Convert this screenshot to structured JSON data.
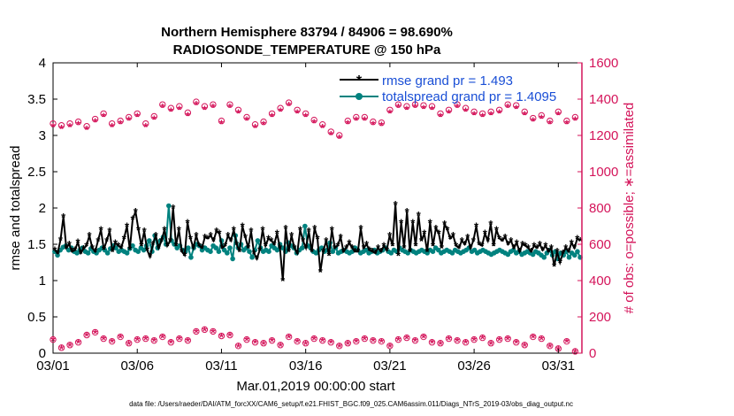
{
  "chart_data": {
    "type": "line",
    "title_line1": "Northern Hemisphere 83794 / 84906 = 98.690%",
    "title_line2": "RADIOSONDE_TEMPERATURE @ 150 hPa",
    "xlabel": "Mar.01,2019 00:00:00 start",
    "ylabel_left": "rmse and totalspread",
    "ylabel_right": "# of obs: o=possible; ∗=assimilated",
    "footer": "data file: /Users/raeder/DAI/ATM_forcXX/CAM6_setup/f.e21.FHIST_BGC.f09_025.CAM6assim.011/Diags_NTrS_2019-03/obs_diag_output.nc",
    "xlim": [
      0,
      31.4
    ],
    "ylim_left": [
      0,
      4
    ],
    "ylim_right": [
      0,
      1600
    ],
    "x_ticks": [
      {
        "label": "03/01",
        "value": 0
      },
      {
        "label": "03/06",
        "value": 5
      },
      {
        "label": "03/11",
        "value": 10
      },
      {
        "label": "03/16",
        "value": 15
      },
      {
        "label": "03/21",
        "value": 20
      },
      {
        "label": "03/26",
        "value": 25
      },
      {
        "label": "03/31",
        "value": 30
      }
    ],
    "y_ticks_left": [
      "0",
      "0.5",
      "1",
      "1.5",
      "2",
      "2.5",
      "3",
      "3.5",
      "4"
    ],
    "y_ticks_right": [
      "0",
      "200",
      "400",
      "600",
      "800",
      "1000",
      "1200",
      "1400",
      "1600"
    ],
    "legend": {
      "placement": "top-right",
      "rmse": "rmse grand pr = 1.493",
      "spread": "totalspread grand pr = 1.4095"
    },
    "colors": {
      "rmse": "#000000",
      "spread": "#00827f",
      "obs": "#d4145a",
      "legend_text": "#1a4fd6",
      "axis": "#000000"
    },
    "rmse": [
      1.42,
      1.38,
      1.56,
      1.88,
      1.45,
      1.5,
      1.4,
      1.42,
      1.53,
      1.38,
      1.44,
      1.48,
      1.62,
      1.45,
      1.4,
      1.55,
      1.7,
      1.43,
      1.55,
      1.68,
      1.4,
      1.52,
      1.48,
      1.45,
      1.58,
      1.75,
      1.43,
      1.85,
      1.95,
      1.7,
      1.48,
      1.68,
      1.42,
      1.33,
      1.5,
      1.62,
      1.45,
      1.55,
      1.7,
      1.48,
      1.55,
      2.0,
      1.48,
      1.7,
      1.4,
      1.35,
      1.8,
      1.58,
      1.45,
      1.62,
      1.48,
      1.45,
      1.6,
      1.58,
      1.62,
      1.55,
      1.68,
      1.65,
      1.45,
      1.48,
      1.62,
      1.55,
      1.7,
      1.5,
      1.4,
      1.75,
      1.6,
      1.45,
      1.68,
      1.38,
      1.3,
      1.42,
      1.7,
      1.48,
      1.58,
      1.55,
      1.5,
      1.65,
      1.45,
      1.0,
      1.72,
      1.4,
      1.62,
      1.45,
      1.38,
      1.7,
      1.55,
      1.45,
      1.68,
      1.4,
      1.72,
      1.58,
      1.12,
      1.4,
      1.55,
      1.35,
      1.7,
      1.45,
      1.48,
      1.6,
      1.4,
      1.45,
      1.52,
      1.45,
      1.4,
      1.4,
      1.72,
      1.45,
      1.5,
      1.42,
      1.4,
      1.38,
      1.45,
      1.4,
      1.48,
      1.42,
      1.62,
      1.48,
      2.05,
      1.35,
      1.8,
      1.45,
      1.95,
      1.4,
      1.8,
      1.48,
      1.9,
      1.55,
      1.65,
      1.4,
      1.8,
      1.48,
      1.72,
      1.65,
      1.45,
      1.78,
      1.7,
      1.58,
      1.62,
      1.48,
      1.45,
      1.55,
      1.5,
      1.6,
      1.45,
      1.55,
      1.75,
      1.5,
      1.48,
      1.65,
      1.55,
      1.78,
      1.48,
      1.7,
      1.58,
      1.55,
      1.6,
      1.5,
      1.55,
      1.45,
      1.52,
      1.4,
      1.5,
      1.48,
      1.45,
      1.4,
      1.48,
      1.45,
      1.5,
      1.42,
      1.48,
      1.4,
      1.45,
      1.2,
      1.4,
      1.25,
      1.38,
      1.45,
      1.4,
      1.52,
      1.45,
      1.58,
      1.55
    ],
    "totalspread": [
      1.4,
      1.35,
      1.42,
      1.46,
      1.48,
      1.42,
      1.45,
      1.4,
      1.38,
      1.42,
      1.45,
      1.4,
      1.38,
      1.44,
      1.4,
      1.38,
      1.42,
      1.45,
      1.42,
      1.38,
      1.44,
      1.48,
      1.45,
      1.4,
      1.42,
      1.4,
      1.38,
      1.44,
      1.48,
      1.42,
      1.4,
      1.45,
      1.42,
      1.48,
      1.55,
      1.4,
      1.62,
      1.45,
      1.55,
      1.6,
      1.5,
      2.03,
      1.55,
      1.5,
      1.45,
      1.48,
      1.42,
      1.4,
      1.45,
      1.32,
      1.45,
      1.5,
      1.48,
      1.42,
      1.45,
      1.42,
      1.4,
      1.48,
      1.45,
      1.4,
      1.55,
      1.42,
      1.38,
      1.45,
      1.3,
      1.62,
      1.45,
      1.5,
      1.42,
      1.45,
      1.4,
      1.32,
      1.42,
      1.55,
      1.45,
      1.4,
      1.42,
      1.4,
      1.48,
      1.45,
      1.42,
      1.5,
      1.45,
      1.4,
      1.52,
      1.48,
      1.45,
      1.38,
      1.42,
      1.45,
      1.75,
      1.48,
      1.45,
      1.4,
      1.38,
      1.42,
      1.45,
      1.4,
      1.42,
      1.52,
      1.4,
      1.45,
      1.38,
      1.4,
      1.42,
      1.4,
      1.38,
      1.4,
      1.45,
      1.42,
      1.38,
      1.4,
      1.42,
      1.38,
      1.4,
      1.42,
      1.38,
      1.4,
      1.42,
      1.45,
      1.4,
      1.38,
      1.42,
      1.4,
      1.45,
      1.42,
      1.4,
      1.38,
      1.42,
      1.4,
      1.38,
      1.4,
      1.42,
      1.4,
      1.38,
      1.42,
      1.4,
      1.45,
      1.42,
      1.38,
      1.4,
      1.42,
      1.4,
      1.38,
      1.42,
      1.4,
      1.38,
      1.4,
      1.42,
      1.45,
      1.4,
      1.42,
      1.38,
      1.4,
      1.42,
      1.4,
      1.38,
      1.36,
      1.38,
      1.4,
      1.42,
      1.4,
      1.38,
      1.36,
      1.4,
      1.42,
      1.38,
      1.4,
      1.36,
      1.38,
      1.4,
      1.38,
      1.36,
      1.4,
      1.38,
      1.35,
      1.32,
      1.38,
      1.42,
      1.35,
      1.4,
      1.3,
      1.38,
      1.35,
      1.4,
      1.32,
      1.38,
      1.35,
      1.4,
      1.32
    ],
    "obs_days": [
      0.0,
      0.5,
      1.0,
      1.5,
      2.0,
      2.5,
      3.0,
      3.5,
      4.0,
      4.5,
      5.0,
      5.5,
      6.0,
      6.5,
      7.0,
      7.5,
      8.0,
      8.5,
      9.0,
      9.5,
      10.0,
      10.5,
      11.0,
      11.5,
      12.0,
      12.5,
      13.0,
      13.5,
      14.0,
      14.5,
      15.0,
      15.5,
      16.0,
      16.5,
      17.0,
      17.5,
      18.0,
      18.5,
      19.0,
      19.5,
      20.0,
      20.5,
      21.0,
      21.5,
      22.0,
      22.5,
      23.0,
      23.5,
      24.0,
      24.5,
      25.0,
      25.5,
      26.0,
      26.5,
      27.0,
      27.5,
      28.0,
      28.5,
      29.0,
      29.5,
      30.0,
      30.5,
      31.0
    ],
    "obs_possible_high": [
      1265,
      1255,
      1265,
      1275,
      1250,
      1290,
      1320,
      1265,
      1280,
      1300,
      1320,
      1265,
      1305,
      1370,
      1350,
      1360,
      1325,
      1385,
      1360,
      1370,
      1280,
      1370,
      1340,
      1300,
      1260,
      1275,
      1320,
      1350,
      1380,
      1340,
      1320,
      1285,
      1260,
      1220,
      1200,
      1280,
      1300,
      1300,
      1275,
      1270,
      1340,
      1370,
      1360,
      1370,
      1365,
      1360,
      1320,
      1340,
      1370,
      1350,
      1330,
      1320,
      1330,
      1340,
      1370,
      1365,
      1330,
      1295,
      1310,
      1280,
      1330,
      1280,
      1300
    ],
    "obs_assim_high": [
      1250,
      1240,
      1250,
      1260,
      1235,
      1275,
      1305,
      1250,
      1265,
      1285,
      1305,
      1250,
      1290,
      1355,
      1335,
      1345,
      1310,
      1370,
      1345,
      1355,
      1265,
      1355,
      1325,
      1285,
      1245,
      1260,
      1305,
      1335,
      1365,
      1325,
      1305,
      1270,
      1245,
      1205,
      1185,
      1265,
      1285,
      1285,
      1260,
      1255,
      1325,
      1355,
      1345,
      1355,
      1350,
      1345,
      1305,
      1325,
      1355,
      1335,
      1315,
      1305,
      1315,
      1325,
      1355,
      1350,
      1315,
      1280,
      1295,
      1265,
      1315,
      1265,
      1285
    ],
    "obs_possible_low": [
      75,
      30,
      45,
      60,
      100,
      115,
      80,
      65,
      90,
      55,
      75,
      80,
      70,
      90,
      60,
      80,
      70,
      120,
      130,
      120,
      95,
      100,
      40,
      75,
      60,
      55,
      70,
      45,
      90,
      65,
      55,
      80,
      70,
      60,
      40,
      55,
      65,
      80,
      70,
      65,
      40,
      75,
      85,
      70,
      90,
      60,
      55,
      80,
      70,
      60,
      75,
      85,
      55,
      75,
      80,
      60,
      45,
      90,
      80,
      40,
      25,
      65,
      10
    ],
    "obs_assim_low": [
      70,
      25,
      40,
      55,
      95,
      110,
      75,
      60,
      85,
      50,
      70,
      75,
      65,
      85,
      55,
      75,
      65,
      115,
      125,
      115,
      90,
      95,
      35,
      70,
      55,
      50,
      65,
      40,
      85,
      60,
      50,
      75,
      65,
      55,
      35,
      50,
      60,
      75,
      65,
      60,
      35,
      70,
      80,
      65,
      85,
      55,
      50,
      75,
      65,
      55,
      70,
      80,
      50,
      70,
      75,
      55,
      40,
      85,
      75,
      35,
      20,
      60,
      5
    ]
  }
}
